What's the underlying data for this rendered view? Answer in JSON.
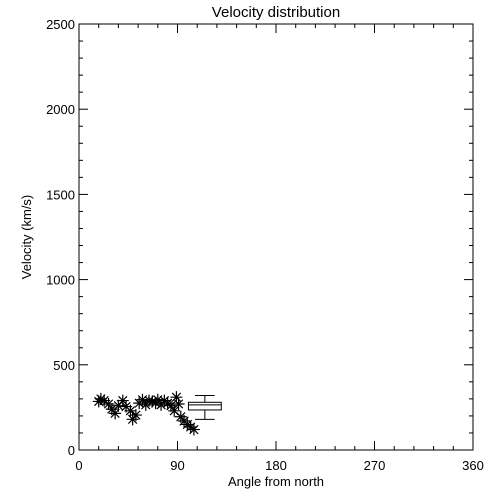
{
  "chart_data": {
    "type": "scatter",
    "title": "Velocity distribution",
    "xlabel": "Angle from north",
    "ylabel": "Velocity (km/s)",
    "xlim": [
      0,
      360
    ],
    "ylim": [
      0,
      2500
    ],
    "x_ticks": [
      0,
      90,
      180,
      270,
      360
    ],
    "x_tick_labels": [
      "0",
      "90",
      "180",
      "270",
      "360"
    ],
    "y_ticks": [
      0,
      500,
      1000,
      1500,
      2000,
      2500
    ],
    "y_tick_labels": [
      "0",
      "500",
      "1000",
      "1500",
      "2000",
      "2500"
    ],
    "grid": false,
    "marker": "asterisk",
    "points": [
      {
        "x": 18,
        "y": 285
      },
      {
        "x": 20,
        "y": 300
      },
      {
        "x": 23,
        "y": 290
      },
      {
        "x": 27,
        "y": 270
      },
      {
        "x": 30,
        "y": 240
      },
      {
        "x": 33,
        "y": 215
      },
      {
        "x": 36,
        "y": 260
      },
      {
        "x": 40,
        "y": 290
      },
      {
        "x": 43,
        "y": 255
      },
      {
        "x": 47,
        "y": 230
      },
      {
        "x": 49,
        "y": 180
      },
      {
        "x": 52,
        "y": 205
      },
      {
        "x": 55,
        "y": 275
      },
      {
        "x": 58,
        "y": 295
      },
      {
        "x": 61,
        "y": 265
      },
      {
        "x": 64,
        "y": 290
      },
      {
        "x": 67,
        "y": 285
      },
      {
        "x": 70,
        "y": 275
      },
      {
        "x": 72,
        "y": 295
      },
      {
        "x": 75,
        "y": 265
      },
      {
        "x": 78,
        "y": 290
      },
      {
        "x": 81,
        "y": 275
      },
      {
        "x": 84,
        "y": 260
      },
      {
        "x": 87,
        "y": 230
      },
      {
        "x": 89,
        "y": 310
      },
      {
        "x": 91,
        "y": 270
      },
      {
        "x": 93,
        "y": 195
      },
      {
        "x": 96,
        "y": 170
      },
      {
        "x": 99,
        "y": 150
      },
      {
        "x": 102,
        "y": 135
      },
      {
        "x": 105,
        "y": 120
      }
    ],
    "boxplot": {
      "x_center": 115,
      "width": 30,
      "whisker_low": 180,
      "q1": 235,
      "median": 265,
      "q3": 280,
      "whisker_high": 320
    }
  }
}
